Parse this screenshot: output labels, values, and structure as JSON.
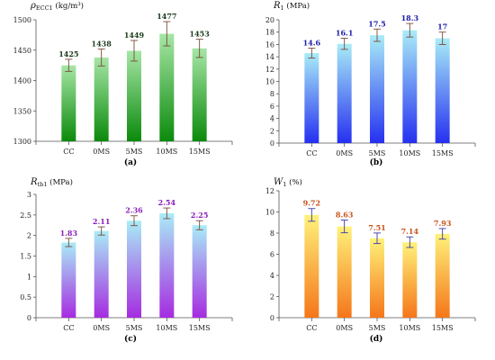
{
  "chart_data": [
    {
      "type": "bar",
      "panel_label": "(a)",
      "ylabel_main": "ρ",
      "ylabel_sub": "ECC1",
      "ylabel_unit": " (kg/m³)",
      "categories": [
        "CC",
        "0MS",
        "5MS",
        "10MS",
        "15MS"
      ],
      "values": [
        1425,
        1438,
        1449,
        1477,
        1453
      ],
      "value_labels": [
        "1425",
        "1438",
        "1449",
        "1477",
        "1453"
      ],
      "errors": [
        10,
        14,
        17,
        20,
        15
      ],
      "ylim": [
        1300,
        1500
      ],
      "yticks": [
        1300,
        1350,
        1400,
        1450,
        1500
      ],
      "ytick_labels": [
        "1300",
        "1350",
        "1400",
        "1450",
        "1500"
      ],
      "grid": false,
      "colors": {
        "bar_top": "#a6e6a6",
        "bar_bottom": "#0b8a0b",
        "label": "#1a3a1a",
        "error": "#7a4a3a"
      }
    },
    {
      "type": "bar",
      "panel_label": "(b)",
      "ylabel_main": "R",
      "ylabel_sub": "1",
      "ylabel_unit": " (MPa)",
      "categories": [
        "CC",
        "0MS",
        "5MS",
        "10MS",
        "15MS"
      ],
      "values": [
        14.6,
        16.1,
        17.5,
        18.3,
        17
      ],
      "value_labels": [
        "14.6",
        "16.1",
        "17.5",
        "18.3",
        "17"
      ],
      "errors": [
        0.8,
        0.9,
        1.0,
        1.1,
        1.0
      ],
      "ylim": [
        0,
        20
      ],
      "yticks": [
        0,
        2,
        4,
        6,
        8,
        10,
        12,
        14,
        16,
        18,
        20
      ],
      "ytick_labels": [
        "0",
        "2",
        "4",
        "6",
        "8",
        "10",
        "12",
        "14",
        "16",
        "18",
        "20"
      ],
      "grid": false,
      "colors": {
        "bar_top": "#a9ecf7",
        "bar_bottom": "#2530f0",
        "label": "#1a1aa8",
        "error": "#7a4a3a"
      }
    },
    {
      "type": "bar",
      "panel_label": "(c)",
      "ylabel_main": "R",
      "ylabel_sub": "tb1",
      "ylabel_unit": " (MPa)",
      "categories": [
        "CC",
        "0MS",
        "5MS",
        "10MS",
        "15MS"
      ],
      "values": [
        1.83,
        2.11,
        2.36,
        2.54,
        2.25
      ],
      "value_labels": [
        "1.83",
        "2.11",
        "2.36",
        "2.54",
        "2.25"
      ],
      "errors": [
        0.1,
        0.1,
        0.12,
        0.13,
        0.11
      ],
      "ylim": [
        0,
        3
      ],
      "yticks": [
        0,
        0.5,
        1,
        1.5,
        2,
        2.5,
        3
      ],
      "ytick_labels": [
        "0",
        "0.5",
        "1",
        "1.5",
        "2",
        "2.5",
        "3"
      ],
      "grid": false,
      "colors": {
        "bar_top": "#a9ecf7",
        "bar_bottom": "#a52be0",
        "label": "#8a20b8",
        "error": "#7a4a3a"
      }
    },
    {
      "type": "bar",
      "panel_label": "(d)",
      "ylabel_main": "W",
      "ylabel_sub": "1",
      "ylabel_unit": " (%)",
      "categories": [
        "CC",
        "0MS",
        "5MS",
        "10MS",
        "15MS"
      ],
      "values": [
        9.72,
        8.63,
        7.51,
        7.14,
        7.93
      ],
      "value_labels": [
        "9.72",
        "8.63",
        "7.51",
        "7.14",
        "7.93"
      ],
      "errors": [
        0.6,
        0.6,
        0.5,
        0.5,
        0.5
      ],
      "ylim": [
        0,
        12
      ],
      "yticks": [
        0,
        2,
        4,
        6,
        8,
        10,
        12
      ],
      "ytick_labels": [
        "0",
        "2",
        "4",
        "6",
        "8",
        "10",
        "12"
      ],
      "grid": false,
      "colors": {
        "bar_top": "#fff27a",
        "bar_bottom": "#f5761a",
        "label": "#c8501a",
        "error": "#3a3aa8"
      }
    }
  ]
}
